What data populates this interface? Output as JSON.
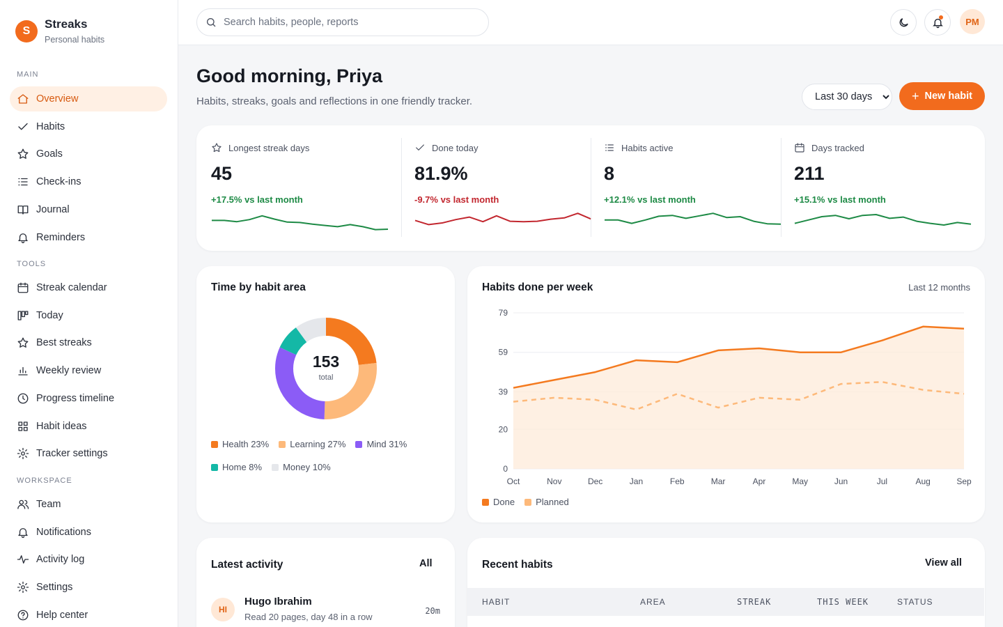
{
  "brand": {
    "initial": "S",
    "name": "Streaks",
    "subtitle": "Personal habits"
  },
  "sidebar": {
    "sections": [
      {
        "label": "MAIN",
        "items": [
          {
            "label": "Overview",
            "icon": "home-icon",
            "active": true
          },
          {
            "label": "Habits",
            "icon": "check-icon"
          },
          {
            "label": "Goals",
            "icon": "star-icon"
          },
          {
            "label": "Check-ins",
            "icon": "list-icon"
          },
          {
            "label": "Journal",
            "icon": "book-icon"
          },
          {
            "label": "Reminders",
            "icon": "bell-icon"
          }
        ]
      },
      {
        "label": "TOOLS",
        "items": [
          {
            "label": "Streak calendar",
            "icon": "calendar-icon"
          },
          {
            "label": "Today",
            "icon": "kanban-icon"
          },
          {
            "label": "Best streaks",
            "icon": "star-icon"
          },
          {
            "label": "Weekly review",
            "icon": "bar-chart-icon"
          },
          {
            "label": "Progress timeline",
            "icon": "clock-icon"
          },
          {
            "label": "Habit ideas",
            "icon": "grid-icon"
          },
          {
            "label": "Tracker settings",
            "icon": "gear-icon"
          }
        ]
      },
      {
        "label": "WORKSPACE",
        "items": [
          {
            "label": "Team",
            "icon": "users-icon"
          },
          {
            "label": "Notifications",
            "icon": "bell-icon"
          },
          {
            "label": "Activity log",
            "icon": "activity-icon"
          },
          {
            "label": "Settings",
            "icon": "gear-icon"
          },
          {
            "label": "Help center",
            "icon": "help-icon"
          }
        ]
      }
    ]
  },
  "topbar": {
    "search_placeholder": "Search habits, people, reports",
    "avatar_initials": "PM"
  },
  "header": {
    "greeting": "Good morning, Priya",
    "subtitle": "Habits, streaks, goals and reflections in one friendly tracker.",
    "range_options": [
      "Last 30 days"
    ],
    "range_selected": "Last 30 days",
    "new_habit_label": "New habit"
  },
  "kpis": [
    {
      "label": "Longest streak days",
      "icon": "star-icon",
      "value": "45",
      "delta": "+17.5% vs last month",
      "trend": "up",
      "spark": [
        36,
        36,
        33,
        38,
        47,
        39,
        32,
        31,
        27,
        24,
        21,
        26,
        21,
        14,
        15
      ]
    },
    {
      "label": "Done today",
      "icon": "check-icon",
      "value": "81.9%",
      "delta": "-9.7% vs last month",
      "trend": "down",
      "spark": [
        36,
        26,
        30,
        38,
        44,
        33,
        47,
        34,
        33,
        34,
        39,
        42,
        53,
        39
      ]
    },
    {
      "label": "Habits active",
      "icon": "list-icon",
      "value": "8",
      "delta": "+12.1% vs last month",
      "trend": "up",
      "spark": [
        37,
        37,
        29,
        37,
        46,
        48,
        41,
        47,
        53,
        43,
        45,
        34,
        28,
        27
      ]
    },
    {
      "label": "Days tracked",
      "icon": "calendar-icon",
      "value": "211",
      "delta": "+15.1% vs last month",
      "trend": "up",
      "spark": [
        29,
        37,
        45,
        48,
        40,
        48,
        50,
        41,
        44,
        34,
        29,
        25,
        31,
        27
      ]
    }
  ],
  "colors": {
    "accent": "#f26b1d",
    "up": "#1d8a45",
    "down": "#c2262e"
  },
  "donut": {
    "title": "Time by habit area",
    "total": "153",
    "total_label": "total",
    "chart_data": {
      "type": "pie",
      "slices": [
        {
          "name": "Health",
          "label": "Health 23%",
          "value": 23,
          "color": "#f47a1f"
        },
        {
          "name": "Learning",
          "label": "Learning 27%",
          "value": 27,
          "color": "#fdb97a"
        },
        {
          "name": "Mind",
          "label": "Mind 31%",
          "value": 31,
          "color": "#8b5cf6"
        },
        {
          "name": "Home",
          "label": "Home 8%",
          "value": 8,
          "color": "#14b8a6"
        },
        {
          "name": "Money",
          "label": "Money 10%",
          "value": 10,
          "color": "#e5e7eb"
        }
      ]
    }
  },
  "weekly": {
    "title": "Habits done per week",
    "period": "Last 12 months",
    "chart_data": {
      "type": "area",
      "categories": [
        "Oct",
        "Nov",
        "Dec",
        "Jan",
        "Feb",
        "Mar",
        "Apr",
        "May",
        "Jun",
        "Jul",
        "Aug",
        "Sep"
      ],
      "y_ticks": [
        "0",
        "20",
        "39",
        "59",
        "79"
      ],
      "ylim": [
        0,
        79
      ],
      "series": [
        {
          "name": "Done",
          "color": "#f47a1f",
          "values": [
            41,
            45,
            49,
            55,
            54,
            60,
            61,
            59,
            59,
            65,
            72,
            71
          ]
        },
        {
          "name": "Planned",
          "color": "#fdb97a",
          "values": [
            34,
            36,
            35,
            30,
            38,
            31,
            36,
            35,
            43,
            44,
            40,
            38
          ]
        }
      ]
    }
  },
  "activity": {
    "title": "Latest activity",
    "all_label": "All",
    "items": [
      {
        "initials": "HI",
        "name": "Hugo Ibrahim",
        "desc": "Read 20 pages, day 48 in a row",
        "time": "20m"
      }
    ]
  },
  "recent": {
    "title": "Recent habits",
    "view_all": "View all",
    "columns": [
      "HABIT",
      "AREA",
      "STREAK",
      "THIS WEEK",
      "STATUS"
    ]
  }
}
